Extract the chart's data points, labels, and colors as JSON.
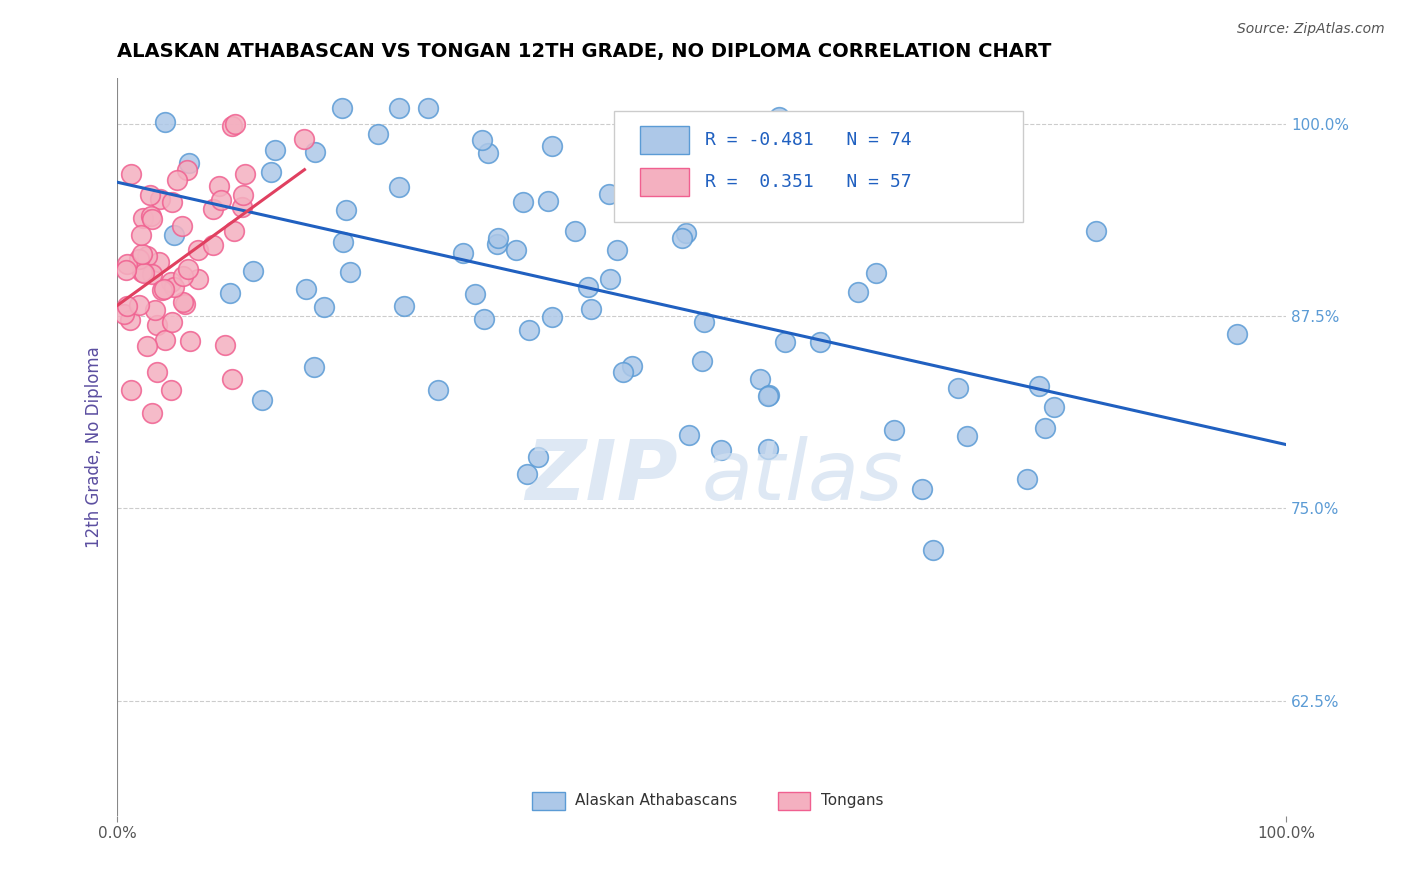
{
  "title": "ALASKAN ATHABASCAN VS TONGAN 12TH GRADE, NO DIPLOMA CORRELATION CHART",
  "source": "Source: ZipAtlas.com",
  "ylabel": "12th Grade, No Diploma",
  "xmin": 0.0,
  "xmax": 1.0,
  "ymin": 0.55,
  "ymax": 1.03,
  "x_tick_labels": [
    "0.0%",
    "100.0%"
  ],
  "y_tick_labels_right": [
    "100.0%",
    "87.5%",
    "75.0%",
    "62.5%"
  ],
  "y_tick_positions_right": [
    1.0,
    0.875,
    0.75,
    0.625
  ],
  "blue_color": "#5b9bd5",
  "pink_color": "#f06090",
  "blue_fill": "#adc8e8",
  "pink_fill": "#f4b0c0",
  "trend_blue_color": "#2060c0",
  "trend_pink_color": "#e04060",
  "blue_R": -0.481,
  "pink_R": 0.351,
  "blue_N": 74,
  "pink_N": 57,
  "grid_color": "#cccccc",
  "watermark_color": "#d0dff0",
  "legend_text_color": "#2060c0",
  "ylabel_color": "#5b4ea0",
  "right_tick_color": "#5b9bd5"
}
